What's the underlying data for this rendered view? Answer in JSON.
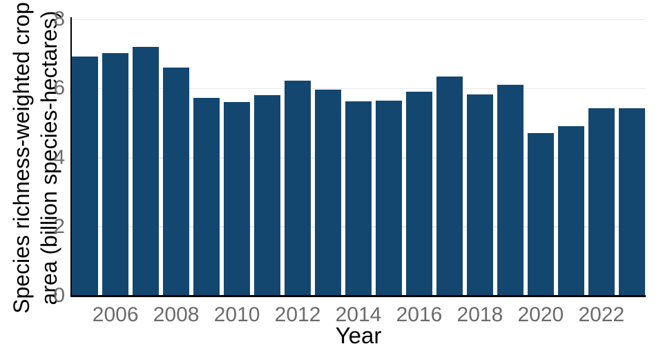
{
  "chart_data": {
    "type": "bar",
    "title": "",
    "xlabel": "Year",
    "ylabel_lines": [
      "Species richness-weighted crop",
      "area (billion species-hectares)"
    ],
    "categories": [
      2005,
      2006,
      2007,
      2008,
      2009,
      2010,
      2011,
      2012,
      2013,
      2014,
      2015,
      2016,
      2017,
      2018,
      2019,
      2020,
      2021,
      2022,
      2023
    ],
    "values": [
      6.93,
      7.03,
      7.2,
      6.6,
      5.72,
      5.6,
      5.8,
      6.22,
      5.97,
      5.62,
      5.65,
      5.9,
      6.35,
      5.83,
      6.1,
      4.7,
      4.9,
      5.43,
      5.43
    ],
    "x_ticks": [
      "2006",
      "2008",
      "2010",
      "2012",
      "2014",
      "2016",
      "2018",
      "2020",
      "2022"
    ],
    "y_ticks": [
      0,
      2,
      4,
      6,
      8
    ],
    "ylim": [
      0,
      8
    ],
    "grid": "horizontal gridlines at 2, 4, 6, 8",
    "legend_position": "none",
    "colors": {
      "bar": "#134770",
      "grid": "#e8e8e8",
      "tick_label": "#6b6b6b",
      "axis_label": "#000000",
      "axis_line": "#000000",
      "background": "#ffffff"
    }
  }
}
